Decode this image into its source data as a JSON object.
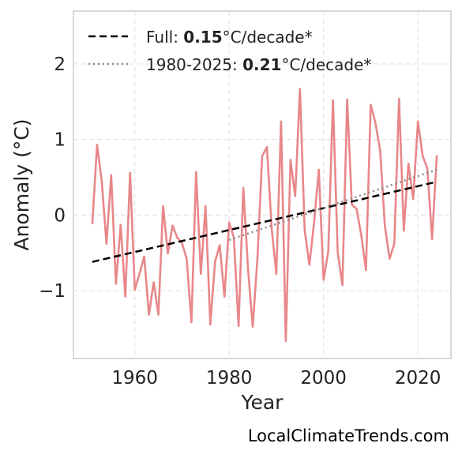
{
  "chart_data": {
    "type": "line",
    "xlabel": "Year",
    "ylabel": "Anomaly (°C)",
    "xlim": [
      1947,
      2027
    ],
    "ylim": [
      -1.9,
      2.7
    ],
    "xticks": [
      1960,
      1980,
      2000,
      2020
    ],
    "yticks": [
      -1,
      0,
      1,
      2
    ],
    "ytick_labels": [
      "−1",
      "0",
      "1",
      "2"
    ],
    "grid": true,
    "legend_position": "top-left",
    "series": [
      {
        "style": "solid",
        "color": "#e8878a",
        "x": [
          1951,
          1952,
          1953,
          1954,
          1955,
          1956,
          1957,
          1958,
          1959,
          1960,
          1961,
          1962,
          1963,
          1964,
          1965,
          1966,
          1967,
          1968,
          1969,
          1970,
          1971,
          1972,
          1973,
          1974,
          1975,
          1976,
          1977,
          1978,
          1979,
          1980,
          1981,
          1982,
          1983,
          1984,
          1985,
          1986,
          1987,
          1988,
          1989,
          1990,
          1991,
          1992,
          1993,
          1994,
          1995,
          1996,
          1997,
          1998,
          1999,
          2000,
          2001,
          2002,
          2003,
          2004,
          2005,
          2006,
          2007,
          2008,
          2009,
          2010,
          2011,
          2012,
          2013,
          2014,
          2015,
          2016,
          2017,
          2018,
          2019,
          2020,
          2021,
          2022,
          2023,
          2024
        ],
        "y": [
          -0.12,
          0.93,
          0.45,
          -0.38,
          0.53,
          -0.91,
          -0.13,
          -1.08,
          0.56,
          -0.99,
          -0.78,
          -0.55,
          -1.32,
          -0.89,
          -1.32,
          0.12,
          -0.51,
          -0.14,
          -0.3,
          -0.37,
          -0.58,
          -1.42,
          0.57,
          -0.78,
          0.12,
          -1.45,
          -0.62,
          -0.4,
          -1.08,
          -0.1,
          -0.3,
          -1.47,
          0.36,
          -0.72,
          -1.48,
          -0.57,
          0.78,
          0.9,
          -0.18,
          -0.78,
          1.24,
          -1.67,
          0.73,
          0.25,
          1.67,
          -0.2,
          -0.66,
          -0.1,
          0.6,
          -0.86,
          -0.48,
          1.52,
          -0.49,
          -0.93,
          1.53,
          0.14,
          0.08,
          -0.27,
          -0.73,
          1.46,
          1.22,
          0.85,
          -0.14,
          -0.58,
          -0.38,
          1.54,
          -0.21,
          0.68,
          0.21,
          1.24,
          0.78,
          0.62,
          -0.32,
          0.79
        ]
      },
      {
        "label_prefix": "Full: ",
        "label_value": "0.15",
        "label_suffix": "°C/decade*",
        "style": "dashed",
        "color": "#000000",
        "x": [
          1951,
          2024
        ],
        "y": [
          -0.62,
          0.44
        ]
      },
      {
        "label_prefix": "1980-2025: ",
        "label_value": "0.21",
        "label_suffix": "°C/decade*",
        "style": "dotted",
        "color": "#888888",
        "x": [
          1980,
          2024
        ],
        "y": [
          -0.33,
          0.6
        ]
      }
    ]
  },
  "watermark": "LocalClimateTrends.com"
}
